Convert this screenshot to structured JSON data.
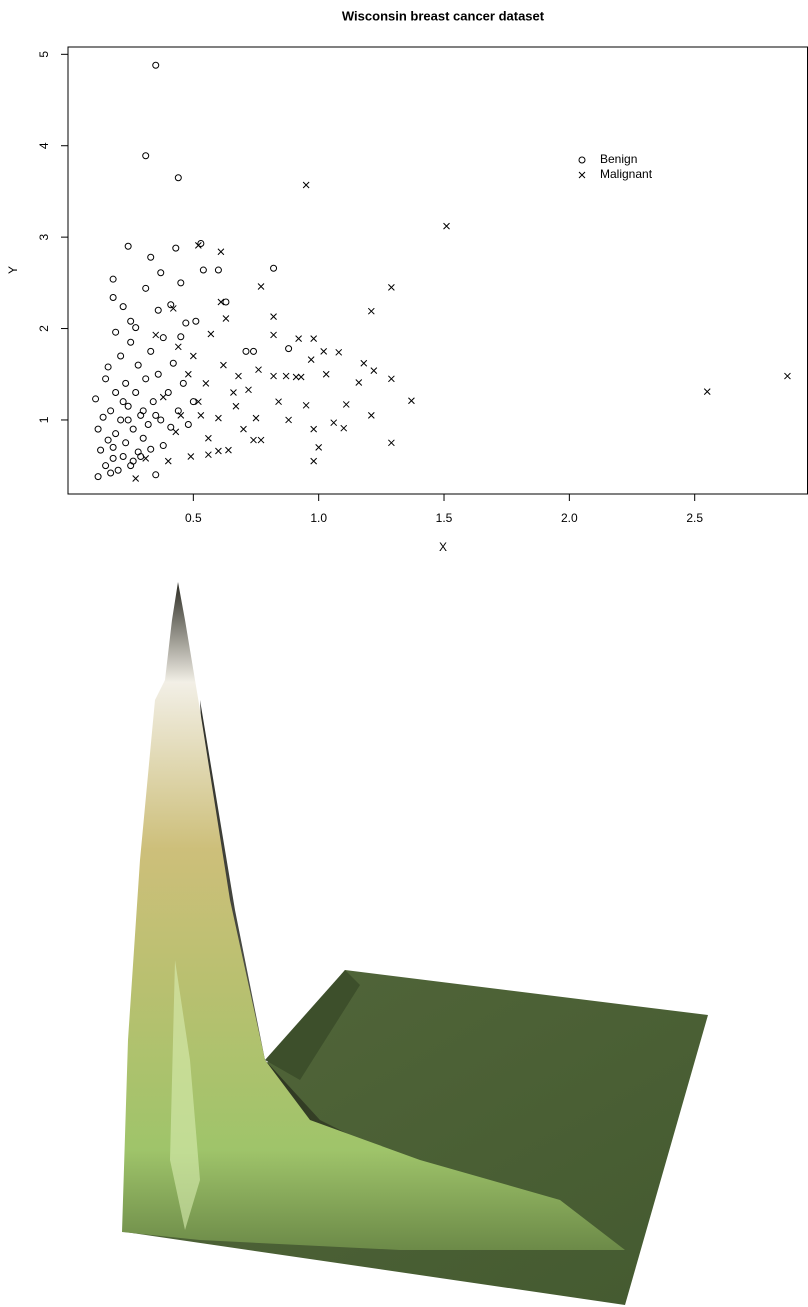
{
  "chart_data": {
    "type": "scatter",
    "title": "Wisconsin breast cancer dataset",
    "x_label": "X",
    "y_label": "Y",
    "xlim": [
      0,
      2.95
    ],
    "ylim": [
      0.19,
      5.08
    ],
    "xticks": [
      0.5,
      {
        "value": 1,
        "label": "1.0"
      },
      1.5,
      {
        "value": 2,
        "label": "2.0"
      },
      2.5
    ],
    "yticks": [
      1,
      2,
      3,
      4,
      5
    ],
    "legend": "top-right",
    "series": [
      {
        "name": "Benign",
        "color": "#000000",
        "marker": "circle",
        "x": [
          0.35,
          0.31,
          0.44,
          0.24,
          0.43,
          0.53,
          0.82,
          0.6,
          0.54,
          0.37,
          0.18,
          0.33,
          0.45,
          0.31,
          0.18,
          0.63,
          0.41,
          0.22,
          0.36,
          0.51,
          0.47,
          0.25,
          0.19,
          0.27,
          0.38,
          0.45,
          0.71,
          0.74,
          0.88,
          0.11,
          0.12,
          0.13,
          0.14,
          0.15,
          0.16,
          0.16,
          0.17,
          0.18,
          0.19,
          0.19,
          0.2,
          0.21,
          0.21,
          0.22,
          0.23,
          0.23,
          0.24,
          0.25,
          0.25,
          0.26,
          0.27,
          0.28,
          0.28,
          0.29,
          0.3,
          0.31,
          0.32,
          0.33,
          0.33,
          0.34,
          0.35,
          0.36,
          0.37,
          0.38,
          0.4,
          0.41,
          0.42,
          0.44,
          0.46,
          0.48,
          0.5,
          0.12,
          0.17,
          0.26,
          0.15,
          0.22,
          0.3,
          0.18,
          0.24,
          0.29,
          0.35
        ],
        "values": [
          4.88,
          3.89,
          3.65,
          2.9,
          2.88,
          2.93,
          2.66,
          2.64,
          2.64,
          2.61,
          2.54,
          2.78,
          2.5,
          2.44,
          2.34,
          2.29,
          2.26,
          2.24,
          2.2,
          2.08,
          2.06,
          2.08,
          1.96,
          2.01,
          1.9,
          1.91,
          1.75,
          1.75,
          1.78,
          1.23,
          0.9,
          0.67,
          1.03,
          0.5,
          0.78,
          1.58,
          1.1,
          0.58,
          1.3,
          0.85,
          0.45,
          1.7,
          1.0,
          0.6,
          1.4,
          0.75,
          1.15,
          0.5,
          1.85,
          0.9,
          1.3,
          0.65,
          1.6,
          1.05,
          0.8,
          1.45,
          0.95,
          1.75,
          0.68,
          1.2,
          0.4,
          1.5,
          1.0,
          0.72,
          1.3,
          0.92,
          1.62,
          1.1,
          1.4,
          0.95,
          1.2,
          0.38,
          0.42,
          0.55,
          1.45,
          1.2,
          1.1,
          0.7,
          1.0,
          0.6,
          1.05
        ]
      },
      {
        "name": "Malignant",
        "color": "#000000",
        "marker": "cross",
        "x": [
          0.95,
          1.51,
          1.29,
          1.21,
          2.55,
          2.87,
          0.61,
          0.52,
          0.77,
          0.61,
          0.63,
          0.82,
          0.82,
          0.92,
          0.98,
          1.08,
          0.97,
          1.18,
          1.22,
          1.29,
          1.37,
          1.21,
          1.29,
          0.98,
          1.0,
          0.98,
          1.11,
          1.06,
          1.1,
          0.95,
          0.87,
          0.91,
          0.84,
          0.75,
          0.77,
          0.74,
          0.7,
          0.6,
          0.56,
          0.64,
          0.49,
          0.4,
          0.31,
          0.27,
          0.52,
          0.55,
          0.66,
          0.72,
          0.48,
          0.5,
          0.42,
          0.44,
          0.57,
          0.35,
          0.38,
          0.45,
          0.6,
          0.67,
          0.82,
          0.76,
          1.03,
          1.16,
          0.43,
          0.56,
          0.68,
          0.88,
          0.93,
          0.62,
          0.53,
          1.02
        ],
        "values": [
          3.57,
          3.12,
          2.45,
          2.19,
          1.31,
          1.48,
          2.84,
          2.91,
          2.46,
          2.29,
          2.11,
          2.13,
          1.93,
          1.89,
          1.89,
          1.74,
          1.66,
          1.62,
          1.54,
          1.45,
          1.21,
          1.05,
          0.75,
          0.55,
          0.7,
          0.9,
          1.17,
          0.97,
          0.91,
          1.16,
          1.48,
          1.47,
          1.2,
          1.02,
          0.78,
          0.78,
          0.9,
          0.66,
          0.62,
          0.67,
          0.6,
          0.55,
          0.58,
          0.36,
          1.2,
          1.4,
          1.3,
          1.33,
          1.5,
          1.7,
          2.22,
          1.8,
          1.94,
          1.93,
          1.25,
          1.05,
          1.02,
          1.15,
          1.48,
          1.55,
          1.5,
          1.41,
          0.87,
          0.8,
          1.48,
          1.0,
          1.47,
          1.6,
          1.05,
          1.75
        ]
      }
    ]
  }
}
